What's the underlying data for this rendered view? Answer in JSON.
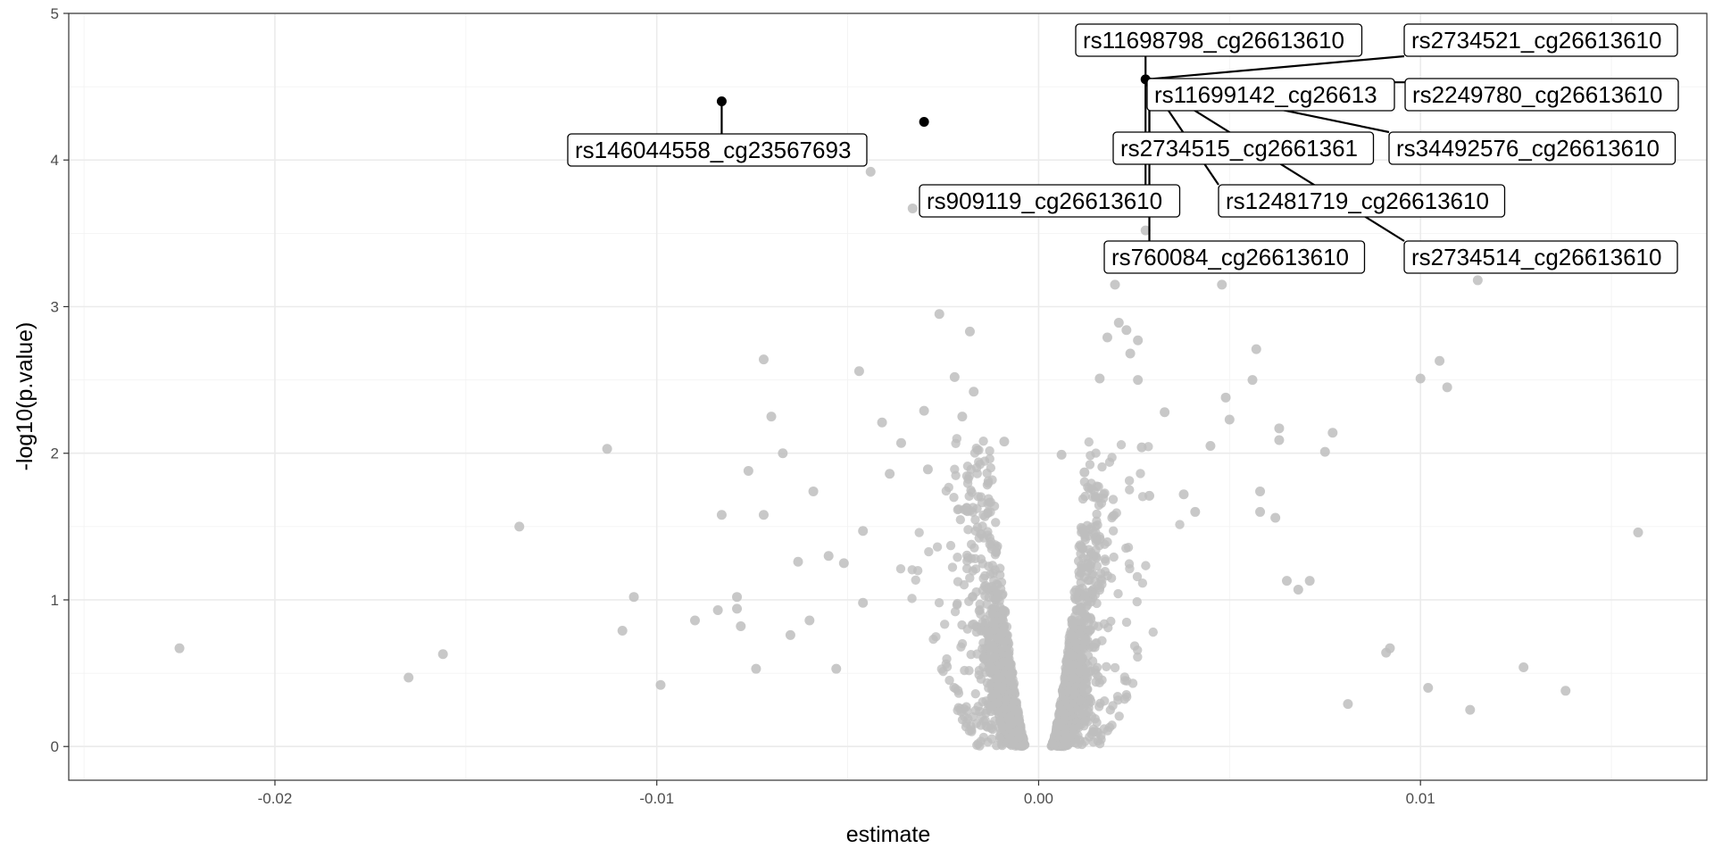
{
  "chart_data": {
    "type": "scatter",
    "title": "",
    "xlabel": "estimate",
    "ylabel": "-log10(p.value)",
    "xlim": [
      -0.0254,
      0.0175
    ],
    "ylim": [
      -0.23,
      5.0
    ],
    "x_ticks": [
      -0.02,
      -0.01,
      0.0,
      0.01
    ],
    "x_tick_labels": [
      "-0.02",
      "-0.01",
      "0.00",
      "0.01"
    ],
    "y_ticks": [
      0,
      1,
      2,
      3,
      4,
      5
    ],
    "y_tick_labels": [
      "0",
      "1",
      "2",
      "3",
      "4",
      "5"
    ],
    "grid": true,
    "legend": "none",
    "colors": {
      "background_points": "#bebebe",
      "highlighted_points": "#000000",
      "grid": "#ebebeb",
      "label_border": "#000000"
    },
    "series": [
      {
        "role": "background",
        "points": [
          {
            "x": -0.0225,
            "y": 0.67
          },
          {
            "x": -0.0165,
            "y": 0.47
          },
          {
            "x": -0.0156,
            "y": 0.63
          },
          {
            "x": -0.0136,
            "y": 1.5
          },
          {
            "x": -0.0113,
            "y": 2.03
          },
          {
            "x": -0.0109,
            "y": 0.79
          },
          {
            "x": -0.0106,
            "y": 1.02
          },
          {
            "x": -0.0099,
            "y": 0.42
          },
          {
            "x": -0.009,
            "y": 0.86
          },
          {
            "x": -0.0084,
            "y": 0.93
          },
          {
            "x": -0.0083,
            "y": 1.58
          },
          {
            "x": -0.0079,
            "y": 1.02
          },
          {
            "x": -0.0079,
            "y": 0.94
          },
          {
            "x": -0.0078,
            "y": 0.82
          },
          {
            "x": -0.0076,
            "y": 1.88
          },
          {
            "x": -0.0074,
            "y": 0.53
          },
          {
            "x": -0.0072,
            "y": 1.58
          },
          {
            "x": -0.0072,
            "y": 2.64
          },
          {
            "x": -0.007,
            "y": 2.25
          },
          {
            "x": -0.0067,
            "y": 2.0
          },
          {
            "x": -0.0065,
            "y": 0.76
          },
          {
            "x": -0.0063,
            "y": 1.26
          },
          {
            "x": -0.006,
            "y": 0.86
          },
          {
            "x": -0.0059,
            "y": 1.74
          },
          {
            "x": -0.0055,
            "y": 1.3
          },
          {
            "x": -0.0053,
            "y": 0.53
          },
          {
            "x": -0.0051,
            "y": 1.25
          },
          {
            "x": -0.0047,
            "y": 2.56
          },
          {
            "x": -0.0046,
            "y": 0.98
          },
          {
            "x": -0.0046,
            "y": 1.47
          },
          {
            "x": -0.0044,
            "y": 3.92
          },
          {
            "x": -0.0041,
            "y": 2.21
          },
          {
            "x": -0.0039,
            "y": 1.86
          },
          {
            "x": -0.0036,
            "y": 2.07
          },
          {
            "x": -0.0033,
            "y": 3.67
          },
          {
            "x": -0.003,
            "y": 2.29
          },
          {
            "x": -0.0029,
            "y": 1.89
          },
          {
            "x": -0.0026,
            "y": 2.95
          },
          {
            "x": -0.0022,
            "y": 2.52
          },
          {
            "x": -0.002,
            "y": 2.25
          },
          {
            "x": -0.0018,
            "y": 2.83
          },
          {
            "x": -0.0017,
            "y": 2.42
          },
          {
            "x": -0.0009,
            "y": 2.08
          },
          {
            "x": 0.0006,
            "y": 1.99
          },
          {
            "x": 0.0012,
            "y": 1.87
          },
          {
            "x": 0.0016,
            "y": 2.51
          },
          {
            "x": 0.0018,
            "y": 2.79
          },
          {
            "x": 0.002,
            "y": 3.15
          },
          {
            "x": 0.0021,
            "y": 2.89
          },
          {
            "x": 0.0023,
            "y": 2.84
          },
          {
            "x": 0.0024,
            "y": 2.68
          },
          {
            "x": 0.0026,
            "y": 2.77
          },
          {
            "x": 0.0026,
            "y": 2.5
          },
          {
            "x": 0.0027,
            "y": 2.04
          },
          {
            "x": 0.0028,
            "y": 3.52
          },
          {
            "x": 0.0029,
            "y": 1.71
          },
          {
            "x": 0.0033,
            "y": 2.28
          },
          {
            "x": 0.0038,
            "y": 1.72
          },
          {
            "x": 0.0041,
            "y": 1.6
          },
          {
            "x": 0.0045,
            "y": 2.05
          },
          {
            "x": 0.0048,
            "y": 3.15
          },
          {
            "x": 0.0049,
            "y": 2.38
          },
          {
            "x": 0.005,
            "y": 2.23
          },
          {
            "x": 0.0056,
            "y": 2.5
          },
          {
            "x": 0.0057,
            "y": 2.71
          },
          {
            "x": 0.0058,
            "y": 1.74
          },
          {
            "x": 0.0058,
            "y": 1.6
          },
          {
            "x": 0.0062,
            "y": 1.56
          },
          {
            "x": 0.0063,
            "y": 2.17
          },
          {
            "x": 0.0063,
            "y": 2.09
          },
          {
            "x": 0.0065,
            "y": 1.13
          },
          {
            "x": 0.0068,
            "y": 1.07
          },
          {
            "x": 0.0071,
            "y": 1.13
          },
          {
            "x": 0.0075,
            "y": 2.01
          },
          {
            "x": 0.0077,
            "y": 2.14
          },
          {
            "x": 0.0081,
            "y": 0.29
          },
          {
            "x": 0.0091,
            "y": 0.64
          },
          {
            "x": 0.0092,
            "y": 0.67
          },
          {
            "x": 0.01,
            "y": 2.51
          },
          {
            "x": 0.0102,
            "y": 0.4
          },
          {
            "x": 0.0105,
            "y": 2.63
          },
          {
            "x": 0.0107,
            "y": 2.45
          },
          {
            "x": 0.0113,
            "y": 0.25
          },
          {
            "x": 0.0115,
            "y": 3.18
          },
          {
            "x": 0.0127,
            "y": 0.54
          },
          {
            "x": 0.0138,
            "y": 0.38
          },
          {
            "x": 0.0157,
            "y": 1.46
          }
        ]
      },
      {
        "role": "highlighted",
        "points": [
          {
            "x": -0.0083,
            "y": 4.4
          },
          {
            "x": -0.003,
            "y": 4.26
          },
          {
            "x": 0.0028,
            "y": 4.55
          },
          {
            "x": 0.0029,
            "y": 4.53
          }
        ]
      }
    ],
    "annotations": [
      {
        "text": "rs11698798_cg26613610",
        "point": [
          0.0028,
          4.55
        ]
      },
      {
        "text": "rs2734521_cg26613610",
        "point": [
          0.0028,
          4.55
        ]
      },
      {
        "text": "rs11699142_cg26613",
        "point": [
          0.0029,
          4.53
        ]
      },
      {
        "text": "rs2249780_cg26613610",
        "point": [
          0.0029,
          4.53
        ]
      },
      {
        "text": "rs146044558_cg23567693",
        "point": [
          -0.0083,
          4.4
        ]
      },
      {
        "text": "rs2734515_cg2661361",
        "point": [
          0.0029,
          4.53
        ]
      },
      {
        "text": "rs34492576_cg26613610",
        "point": [
          0.0029,
          4.53
        ]
      },
      {
        "text": "rs909119_cg26613610",
        "point": [
          0.0028,
          4.55
        ]
      },
      {
        "text": "rs12481719_cg26613610",
        "point": [
          0.0029,
          4.53
        ]
      },
      {
        "text": "rs760084_cg26613610",
        "point": [
          0.0029,
          4.53
        ]
      },
      {
        "text": "rs2734514_cg26613610",
        "point": [
          0.0029,
          4.53
        ]
      }
    ]
  }
}
